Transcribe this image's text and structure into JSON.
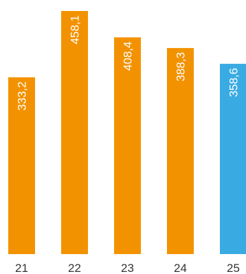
{
  "chart_data": {
    "type": "bar",
    "categories": [
      "21",
      "22",
      "23",
      "24",
      "25"
    ],
    "values": [
      333.2,
      458.1,
      408.4,
      388.3,
      358.6
    ],
    "value_labels": [
      "333,2",
      "458,1",
      "408,4",
      "388,3",
      "358,6"
    ],
    "colors": [
      "#f39200",
      "#f39200",
      "#f39200",
      "#f39200",
      "#3aabe2"
    ],
    "title": "",
    "xlabel": "",
    "ylabel": "",
    "ylim": [
      0,
      458.1
    ],
    "grid": false,
    "legend": "none"
  }
}
